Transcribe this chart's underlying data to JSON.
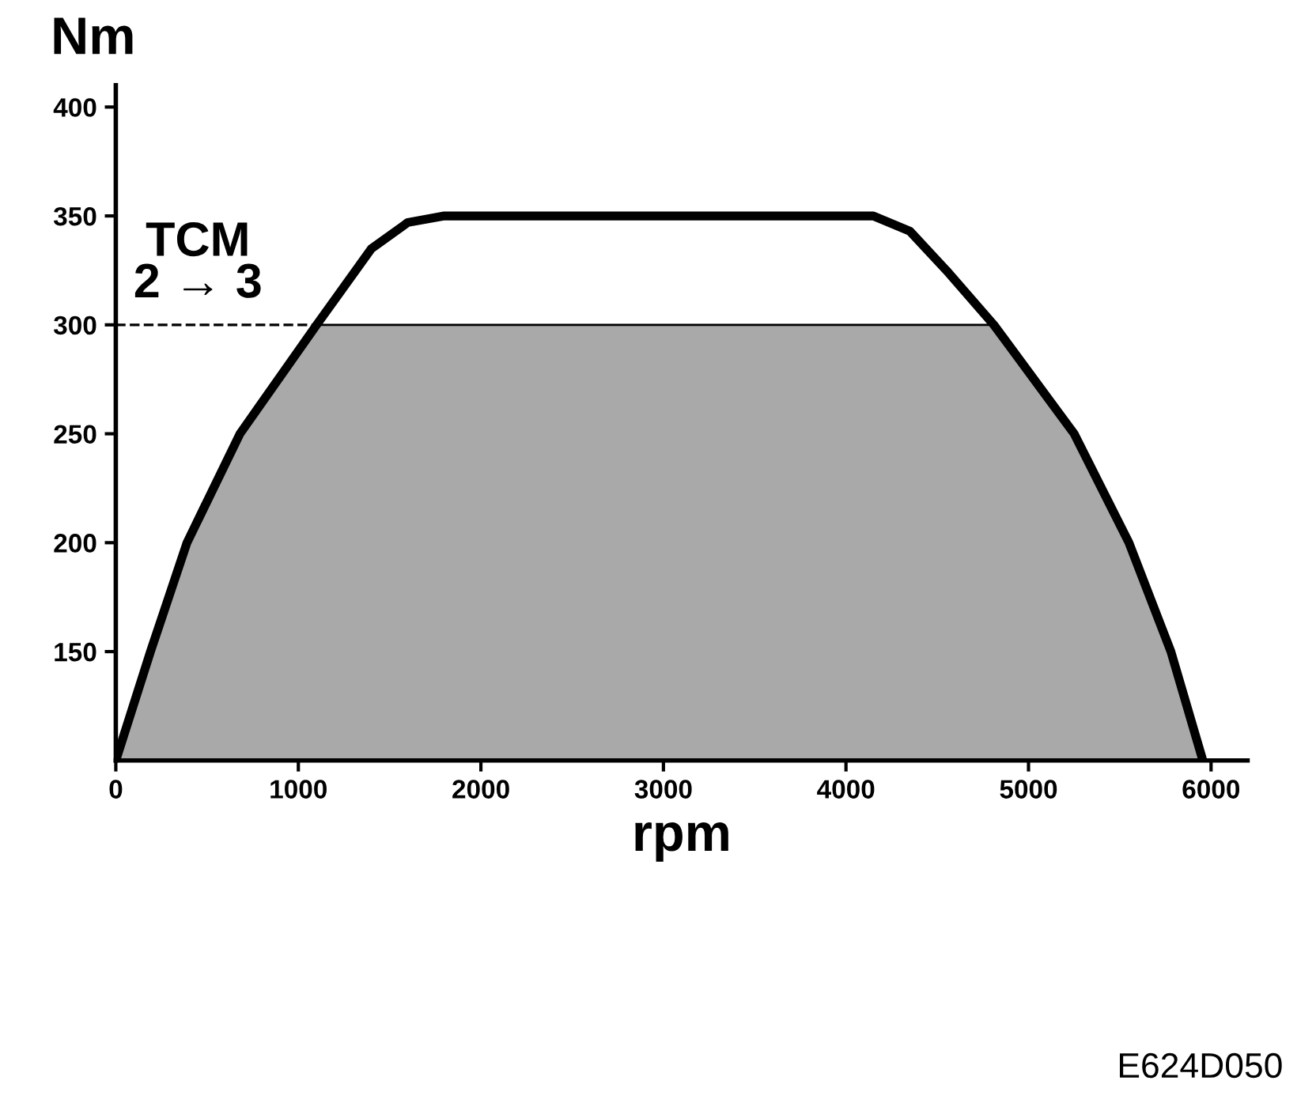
{
  "chart_data": {
    "type": "line",
    "xlabel": "rpm",
    "ylabel": "Nm",
    "series": [
      {
        "type": "area",
        "color": "#a9a9a9",
        "x": [
          0,
          190,
          390,
          680,
          1100,
          4810,
          5250,
          5550,
          5780,
          5955
        ],
        "values": [
          100,
          150,
          200,
          250,
          300,
          300,
          250,
          200,
          150,
          100
        ]
      },
      {
        "color": "#000000",
        "x": [
          0,
          190,
          390,
          680,
          1100,
          1400,
          1600,
          1800,
          4150,
          4350,
          4550,
          4810,
          5250,
          5550,
          5780,
          5955
        ],
        "values": [
          100,
          150,
          200,
          250,
          300,
          335,
          347,
          350,
          350,
          343,
          325,
          300,
          250,
          200,
          150,
          100
        ]
      },
      {
        "color": "#000000",
        "line_style": "dashed",
        "x": [
          0,
          1100
        ],
        "values": [
          300,
          300
        ]
      }
    ],
    "annotations": [
      {
        "text": "TCM\n2 → 3",
        "x": 450,
        "y": 300
      },
      "E624D050"
    ],
    "xlim": [
      0,
      6200
    ],
    "xticks": [
      0,
      1000,
      2000,
      3000,
      4000,
      5000,
      6000
    ],
    "ylim": [
      100,
      410
    ],
    "yticks": [
      150,
      200,
      250,
      300,
      350,
      400
    ],
    "grid": false,
    "legend": false,
    "marker": "none"
  }
}
